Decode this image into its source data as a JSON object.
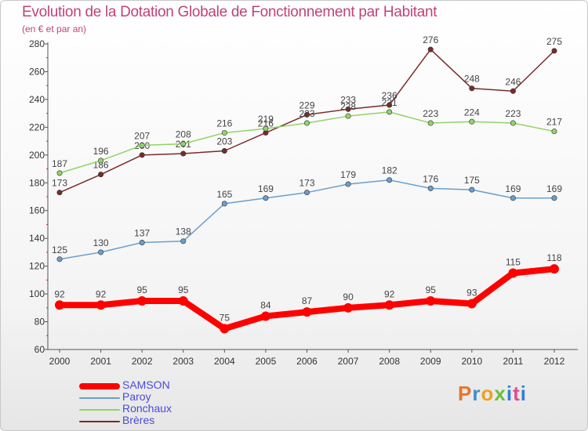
{
  "chart_data": {
    "type": "line",
    "title": "Evolution de la Dotation Globale de Fonctionnement par Habitant",
    "subtitle": "(en € et par an)",
    "categories": [
      "2000",
      "2001",
      "2002",
      "2003",
      "2004",
      "2005",
      "2006",
      "2007",
      "2008",
      "2009",
      "2010",
      "2011",
      "2012"
    ],
    "ylim": [
      60,
      280
    ],
    "yticks": [
      60,
      80,
      100,
      120,
      140,
      160,
      180,
      200,
      220,
      240,
      260,
      280
    ],
    "grid": false,
    "legend_position": "bottom-left",
    "series": [
      {
        "name": "SAMSON",
        "color": "#ff0000",
        "values": [
          92,
          92,
          95,
          95,
          75,
          84,
          87,
          90,
          92,
          95,
          93,
          115,
          118
        ]
      },
      {
        "name": "Paroy",
        "color": "#6a9fce",
        "values": [
          125,
          130,
          137,
          138,
          165,
          169,
          173,
          179,
          182,
          176,
          175,
          169,
          169
        ]
      },
      {
        "name": "Ronchaux",
        "color": "#8fd46a",
        "values": [
          187,
          196,
          207,
          208,
          216,
          219,
          223,
          228,
          231,
          223,
          224,
          223,
          217
        ]
      },
      {
        "name": "Brères",
        "color": "#7a2a2a",
        "values": [
          173,
          186,
          200,
          201,
          203,
          216,
          229,
          233,
          236,
          276,
          248,
          246,
          275
        ]
      }
    ]
  },
  "logo": {
    "text": "Proxiti"
  }
}
